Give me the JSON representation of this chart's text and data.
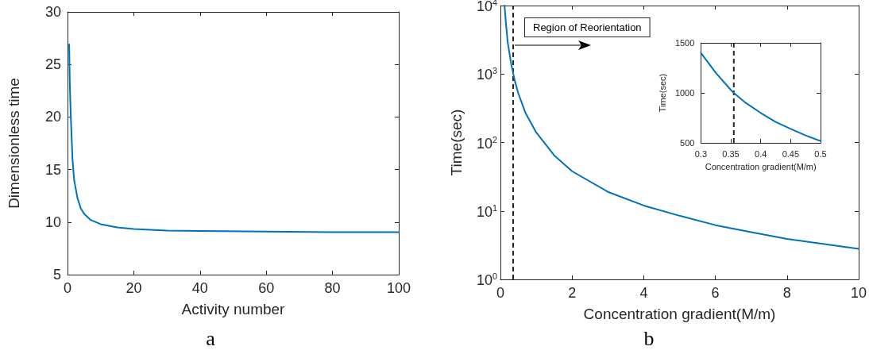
{
  "chart_data": [
    {
      "type": "line",
      "title": "a",
      "xlabel": "Activity number",
      "ylabel": "Dimensionless time",
      "x": [
        0.5,
        0.7,
        1,
        1.5,
        2,
        3,
        4,
        5,
        7,
        10,
        15,
        20,
        30,
        40,
        60,
        80,
        100
      ],
      "series": [
        {
          "color": "#0072bd",
          "values": [
            26.9,
            23,
            20,
            16,
            14,
            12.3,
            11.3,
            10.8,
            10.2,
            9.8,
            9.5,
            9.35,
            9.2,
            9.15,
            9.1,
            9.05,
            9.05
          ]
        }
      ],
      "xlim": [
        0,
        100
      ],
      "xticks": [
        0,
        20,
        40,
        60,
        80,
        100
      ],
      "ylim": [
        5,
        30
      ],
      "yticks": [
        5,
        10,
        15,
        20,
        25,
        30
      ],
      "marker": "none",
      "line_style": "solid"
    },
    {
      "type": "line",
      "title": "b",
      "xlabel": "Concentration gradient(M/m)",
      "ylabel": "Time(sec)",
      "log": "y",
      "x": [
        0.115,
        0.15,
        0.2,
        0.3,
        0.4,
        0.5,
        0.7,
        1,
        1.5,
        2,
        3,
        4,
        5,
        6,
        7,
        8,
        9,
        10
      ],
      "series": [
        {
          "color": "#0072bd",
          "values": [
            10000,
            5800,
            3000,
            1400,
            800,
            520,
            270,
            140,
            65,
            38,
            19,
            12,
            8.5,
            6.2,
            4.9,
            3.9,
            3.3,
            2.8
          ]
        }
      ],
      "xlim": [
        0,
        10
      ],
      "xticks": [
        0,
        2,
        4,
        6,
        8,
        10
      ],
      "ylim": [
        1,
        10000
      ],
      "yticks": [
        {
          "value": 1,
          "label": "10$^{0}$"
        },
        {
          "value": 10,
          "label": "10$^{1}$"
        },
        {
          "value": 100,
          "label": "10$^{2}$"
        },
        {
          "value": 1000,
          "label": "10$^{3}$"
        },
        {
          "value": 10000,
          "label": "10$^{4}$"
        }
      ],
      "ref_lines": [
        {
          "axis": "x",
          "value": 0.355,
          "color": "#262626",
          "line_style": "dashed"
        }
      ],
      "annotations": [
        {
          "text": "Region of Reorientation",
          "x": 0.355,
          "y": 2600
        }
      ],
      "marker": "none",
      "line_style": "solid"
    },
    {
      "type": "line",
      "xlabel": "Concentration gradient(M/m)",
      "ylabel": "Time(sec)",
      "x": [
        0.3,
        0.325,
        0.35,
        0.355,
        0.375,
        0.4,
        0.425,
        0.45,
        0.475,
        0.5
      ],
      "series": [
        {
          "color": "#0072bd",
          "values": [
            1400,
            1200,
            1030,
            1000,
            900,
            800,
            710,
            640,
            575,
            520
          ]
        }
      ],
      "xlim": [
        0.3,
        0.5
      ],
      "xticks": [
        0.3,
        0.35,
        0.4,
        0.45,
        0.5
      ],
      "ylim": [
        500,
        1500
      ],
      "yticks": [
        500,
        1000,
        1500
      ],
      "ref_lines": [
        {
          "axis": "x",
          "value": 0.355,
          "color": "#262626",
          "line_style": "dashed"
        }
      ],
      "marker": "none",
      "line_style": "solid"
    }
  ]
}
